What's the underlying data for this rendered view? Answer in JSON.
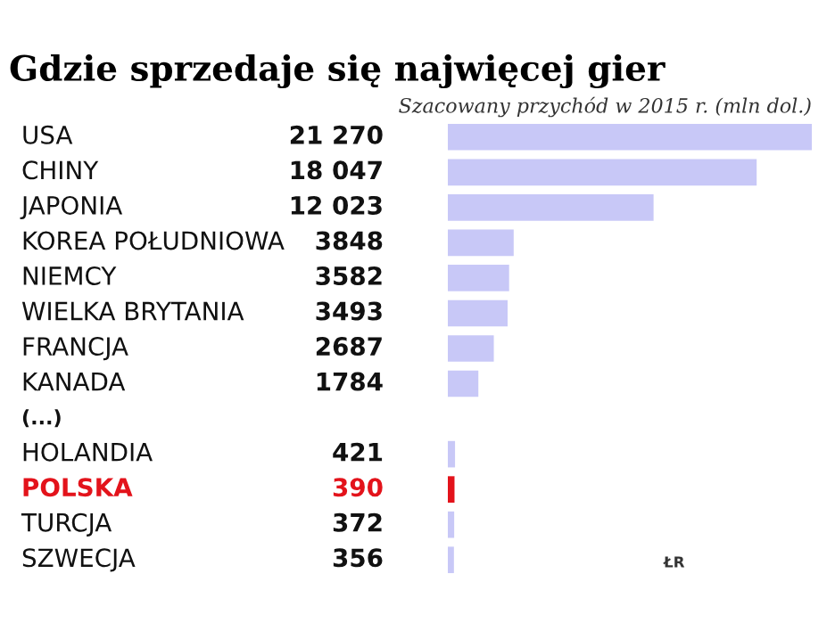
{
  "chart_data": {
    "type": "bar",
    "orientation": "horizontal",
    "title": "Gdzie sprzedaje się najwięcej gier",
    "subtitle": "Szacowany przychód w 2015 r. (mln dol.)",
    "categories": [
      "USA",
      "CHINY",
      "JAPONIA",
      "KOREA POŁUDNIOWA",
      "NIEMCY",
      "WIELKA BRYTANIA",
      "FRANCJA",
      "KANADA",
      "(...)",
      "HOLANDIA",
      "POLSKA",
      "TURCJA",
      "SZWECJA"
    ],
    "values": [
      21270,
      18047,
      12023,
      3848,
      3582,
      3493,
      2687,
      1784,
      null,
      421,
      390,
      372,
      356
    ],
    "value_labels": [
      "21 270",
      "18 047",
      "12 023",
      "3848",
      "3582",
      "3493",
      "2687",
      "1784",
      null,
      "421",
      "390",
      "372",
      "356"
    ],
    "colors": [
      "#c8c8f7",
      "#c8c8f7",
      "#c8c8f7",
      "#c8c8f7",
      "#c8c8f7",
      "#c8c8f7",
      "#c8c8f7",
      "#c8c8f7",
      "#c8c8f7",
      "#c8c8f7",
      "#e3131b",
      "#c8c8f7",
      "#c8c8f7"
    ],
    "annotations": [
      "ŁR"
    ]
  }
}
